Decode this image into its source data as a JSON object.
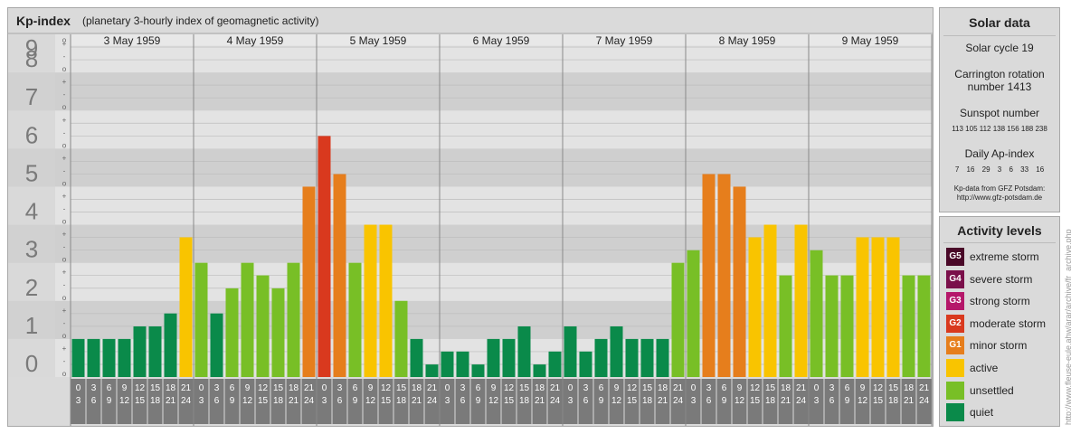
{
  "header": {
    "title": "Kp-index",
    "subtitle": "(planetary 3-hourly index of geomagnetic activity)"
  },
  "chart_data": {
    "type": "bar",
    "ylim": [
      0,
      9
    ],
    "y_ticks": [
      "0",
      "1",
      "2",
      "3",
      "4",
      "5",
      "6",
      "7",
      "8",
      "9"
    ],
    "minor_tick_marks": [
      "o",
      "-",
      "+"
    ],
    "days": [
      "3 May 1959",
      "4 May 1959",
      "5 May 1959",
      "6 May 1959",
      "7 May 1959",
      "8 May 1959",
      "9 May 1959"
    ],
    "interval_start_hours": [
      "0",
      "3",
      "6",
      "9",
      "12",
      "15",
      "18",
      "21"
    ],
    "interval_end_hours": [
      "3",
      "6",
      "9",
      "12",
      "15",
      "18",
      "21",
      "24"
    ],
    "values": [
      1.0,
      1.0,
      1.0,
      1.0,
      1.33,
      1.33,
      1.67,
      3.67,
      3.0,
      1.67,
      2.33,
      3.0,
      2.67,
      2.33,
      3.0,
      5.0,
      6.33,
      5.33,
      3.0,
      4.0,
      4.0,
      2.0,
      1.0,
      0.33,
      0.67,
      0.67,
      0.33,
      1.0,
      1.0,
      1.33,
      0.33,
      0.67,
      1.33,
      0.67,
      1.0,
      1.33,
      1.0,
      1.0,
      1.0,
      3.0,
      3.33,
      5.33,
      5.33,
      5.0,
      3.67,
      4.0,
      2.67,
      4.0,
      3.33,
      2.67,
      2.67,
      3.67,
      3.67,
      3.67,
      2.67,
      2.67
    ],
    "level_colors": {
      "quiet": "#0a8a4a",
      "unsettled": "#78bf26",
      "active": "#f9c400",
      "G1": "#e67e1c",
      "G2": "#d9391e",
      "G3": "#b5176a",
      "G4": "#7a0f4a",
      "G5": "#4a0928"
    }
  },
  "solar_data": {
    "title": "Solar data",
    "cycle": "Solar cycle 19",
    "carrington": "Carrington rotation number 1413",
    "sunspot_label": "Sunspot number",
    "sunspot_values": "113 105 112 138 156 188 238",
    "ap_label": "Daily Ap-index",
    "ap_values": "7 16 29 3 6 33 16",
    "source_line1": "Kp-data from GFZ Potsdam:",
    "source_line2": "http://www.gfz-potsdam.de"
  },
  "activity_levels": {
    "title": "Activity levels",
    "items": [
      {
        "code": "G5",
        "label": "extreme storm",
        "color": "#4a0928"
      },
      {
        "code": "G4",
        "label": "severe storm",
        "color": "#7a0f4a"
      },
      {
        "code": "G3",
        "label": "strong storm",
        "color": "#b5176a"
      },
      {
        "code": "G2",
        "label": "moderate storm",
        "color": "#d9391e"
      },
      {
        "code": "G1",
        "label": "minor storm",
        "color": "#e67e1c"
      },
      {
        "code": "",
        "label": "active",
        "color": "#f9c400"
      },
      {
        "code": "",
        "label": "unsettled",
        "color": "#78bf26"
      },
      {
        "code": "",
        "label": "quiet",
        "color": "#0a8a4a"
      }
    ]
  },
  "credit": "http://www.fleuse-eule.ahw/arar/archive/fr_archive.php"
}
